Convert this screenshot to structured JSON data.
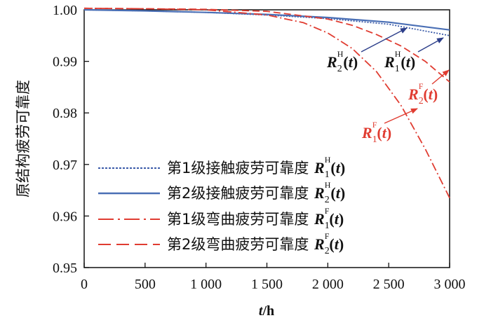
{
  "chart_data": {
    "type": "line",
    "xlabel_var": "t",
    "xlabel_unit": "/h",
    "ylabel": "原结构疲劳可靠度",
    "xlim": [
      0,
      3000
    ],
    "ylim": [
      0.95,
      1.0
    ],
    "x_ticks": [
      "0",
      "500",
      "1 000",
      "1 500",
      "2 000",
      "2 500",
      "3 000"
    ],
    "y_ticks": [
      "0.95",
      "0.96",
      "0.97",
      "0.98",
      "0.99",
      "1.00"
    ],
    "grid": false,
    "legend_position": "lower-left",
    "series": [
      {
        "key": "R1H",
        "legend_text": "第1级接触疲劳可靠度",
        "symbol": "R",
        "sub": "1",
        "sup": "H",
        "color": "#3a5aa8",
        "style": "dotted",
        "x": [
          0,
          500,
          1000,
          1500,
          2000,
          2500,
          3000
        ],
        "y": [
          1.0,
          0.9998,
          0.9995,
          0.999,
          0.9983,
          0.9972,
          0.995
        ]
      },
      {
        "key": "R2H",
        "legend_text": "第2级接触疲劳可靠度",
        "symbol": "R",
        "sub": "2",
        "sup": "H",
        "color": "#4a6fb5",
        "style": "solid",
        "x": [
          0,
          500,
          1000,
          1500,
          2000,
          2500,
          3000
        ],
        "y": [
          1.0,
          0.9998,
          0.9995,
          0.9991,
          0.9985,
          0.9976,
          0.9961
        ]
      },
      {
        "key": "R1F",
        "legend_text": "第1级弯曲疲劳可靠度",
        "symbol": "R",
        "sub": "1",
        "sup": "F",
        "color": "#e03c31",
        "style": "dotdash",
        "x": [
          0,
          500,
          1000,
          1500,
          1800,
          2000,
          2200,
          2400,
          2600,
          2800,
          3000
        ],
        "y": [
          1.0003,
          1.0002,
          1.0,
          0.999,
          0.9975,
          0.9955,
          0.9925,
          0.988,
          0.9815,
          0.973,
          0.9635
        ]
      },
      {
        "key": "R2F",
        "legend_text": "第2级弯曲疲劳可靠度",
        "symbol": "R",
        "sub": "2",
        "sup": "F",
        "color": "#e03c31",
        "style": "dashed",
        "x": [
          0,
          500,
          1000,
          1500,
          2000,
          2200,
          2400,
          2600,
          2800,
          3000
        ],
        "y": [
          1.0003,
          1.0002,
          1.0001,
          0.9997,
          0.9982,
          0.997,
          0.9952,
          0.993,
          0.99,
          0.986
        ]
      }
    ],
    "annotations": [
      {
        "series": "R2H",
        "symbol": "R",
        "sub": "2",
        "sup": "H",
        "color": "#111111"
      },
      {
        "series": "R1H",
        "symbol": "R",
        "sub": "1",
        "sup": "H",
        "color": "#111111"
      },
      {
        "series": "R2F",
        "symbol": "R",
        "sub": "2",
        "sup": "F",
        "color": "#e03c31"
      },
      {
        "series": "R1F",
        "symbol": "R",
        "sub": "1",
        "sup": "F",
        "color": "#e03c31"
      }
    ]
  }
}
